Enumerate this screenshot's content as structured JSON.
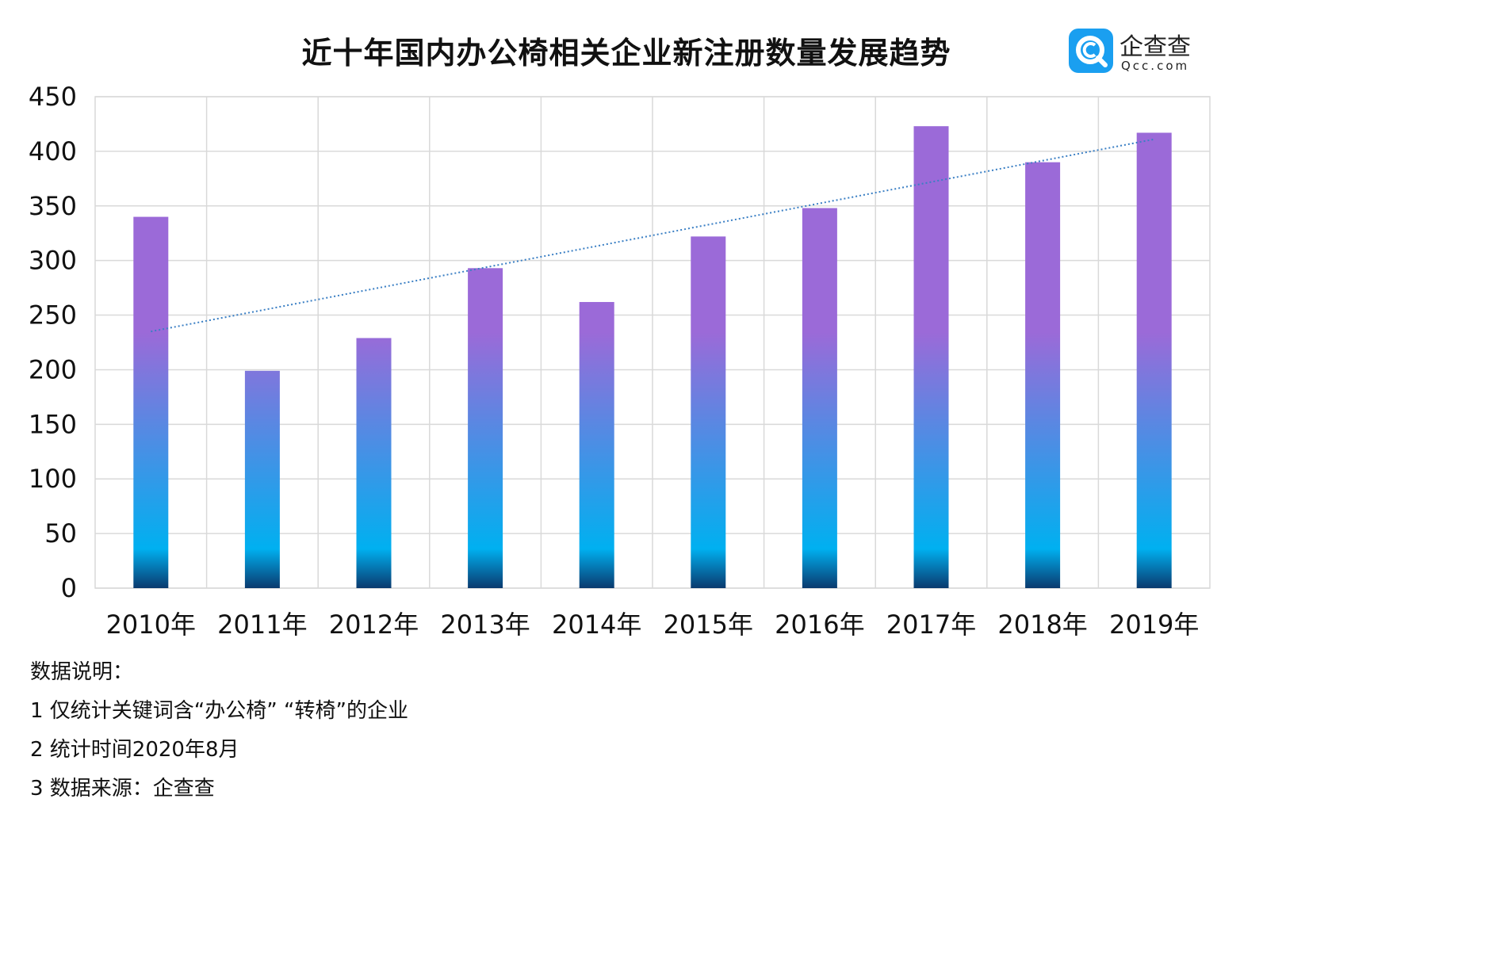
{
  "header": {
    "title": "近十年国内办公椅相关企业新注册数量发展趋势"
  },
  "logo": {
    "icon": "qcc-logo-icon",
    "name": "企查查",
    "domain": "Qcc.com",
    "color": "#1a9ff0"
  },
  "chart_data": {
    "type": "bar",
    "title": "近十年国内办公椅相关企业新注册数量发展趋势",
    "categories": [
      "2010年",
      "2011年",
      "2012年",
      "2013年",
      "2014年",
      "2015年",
      "2016年",
      "2017年",
      "2018年",
      "2019年"
    ],
    "series": [
      {
        "values": [
          340,
          199,
          229,
          293,
          262,
          322,
          348,
          423,
          390,
          417
        ]
      }
    ],
    "trendline": {
      "type": "linear",
      "style": "dotted",
      "color": "#3a7fc4",
      "start": 235,
      "end": 411
    },
    "ylim": [
      0,
      450
    ],
    "yticks": [
      0,
      50,
      100,
      150,
      200,
      250,
      300,
      350,
      400,
      450
    ],
    "ytick_labels": [
      "0",
      "50",
      "100",
      "150",
      "200",
      "250",
      "300",
      "350",
      "400",
      "450"
    ],
    "xlabel": "",
    "ylabel": "",
    "grid": true,
    "legend": "none",
    "bar_gradient": [
      "#0a3a6e",
      "#00b0f0",
      "#9b6ad8"
    ],
    "grid_color": "#d9d9d9"
  },
  "notes": {
    "heading": "数据说明：",
    "lines": [
      "1 仅统计关键词含“办公椅” “转椅”的企业",
      "2 统计时间2020年8月",
      "3 数据来源：企查查"
    ]
  }
}
